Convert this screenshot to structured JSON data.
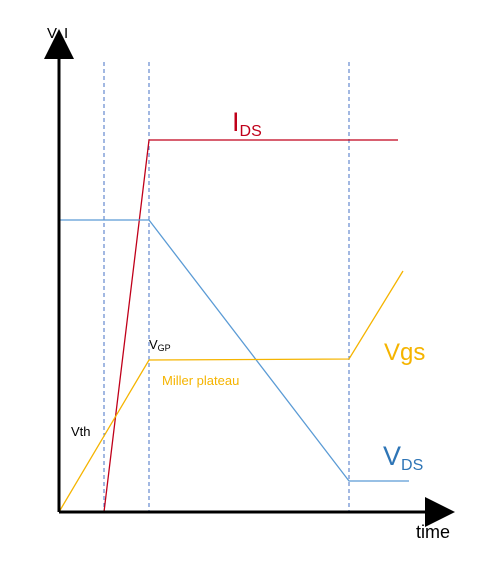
{
  "axes": {
    "y_label": "V, I",
    "x_label": "time"
  },
  "curves": {
    "ids": {
      "main": "I",
      "sub": "DS",
      "color": "#c0001a"
    },
    "vgs": {
      "label": "Vgs",
      "color": "#f5b400"
    },
    "vds": {
      "main": "V",
      "sub": "DS",
      "color": "#2e75b6"
    }
  },
  "annotations": {
    "vgp_main": "V",
    "vgp_sub": "GP",
    "miller": "Miller plateau",
    "vth": "Vth"
  },
  "colors": {
    "axis": "#000000",
    "guide": "#4472c4"
  }
}
